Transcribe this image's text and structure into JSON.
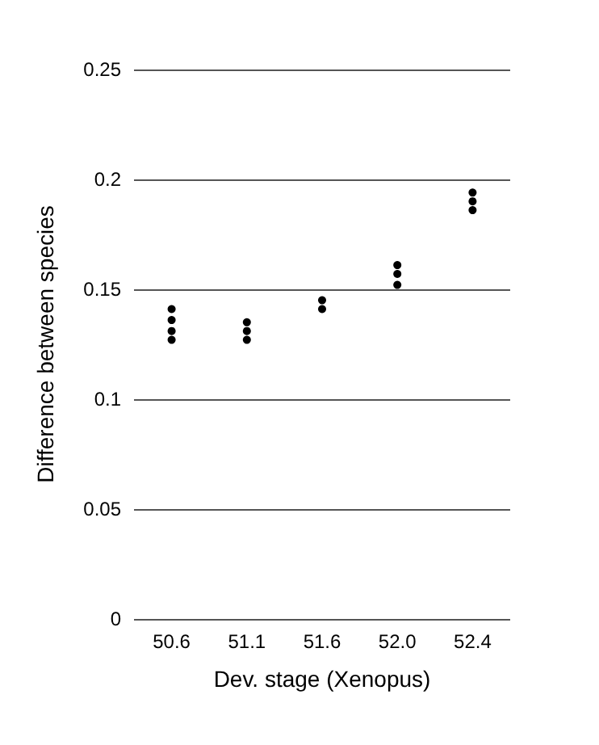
{
  "chart_data": {
    "type": "scatter",
    "xlabel": "Dev. stage (Xenopus)",
    "ylabel": "Difference between species",
    "categories": [
      "50.6",
      "51.1",
      "51.6",
      "52.0",
      "52.4"
    ],
    "series": [
      {
        "color": "#000000",
        "x": [
          "50.6",
          "50.6",
          "50.6",
          "50.6",
          "51.1",
          "51.1",
          "51.1",
          "51.6",
          "51.6",
          "52.0",
          "52.0",
          "52.0",
          "52.4",
          "52.4",
          "52.4"
        ],
        "values": [
          0.141,
          0.136,
          0.131,
          0.127,
          0.135,
          0.131,
          0.127,
          0.145,
          0.141,
          0.161,
          0.157,
          0.152,
          0.194,
          0.19,
          0.186
        ]
      }
    ],
    "ylim": [
      0,
      0.25
    ],
    "yticks": [
      0,
      0.05,
      0.1,
      0.15,
      0.2,
      0.25
    ],
    "grid": "y",
    "marker": "circle"
  }
}
